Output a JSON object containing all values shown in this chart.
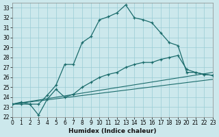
{
  "bg_color": "#cce8ec",
  "grid_color": "#99ccd4",
  "line_color": "#1a6b6b",
  "xlabel": "Humidex (Indice chaleur)",
  "xlim": [
    0,
    23
  ],
  "ylim": [
    22,
    33.5
  ],
  "yticks": [
    22,
    23,
    24,
    25,
    26,
    27,
    28,
    29,
    30,
    31,
    32,
    33
  ],
  "xticks": [
    0,
    1,
    2,
    3,
    4,
    5,
    6,
    7,
    8,
    9,
    10,
    11,
    12,
    13,
    14,
    15,
    16,
    17,
    18,
    19,
    20,
    21,
    22,
    23
  ],
  "curve1_x": [
    0,
    1,
    2,
    3,
    4,
    5,
    6,
    7,
    8,
    9,
    10,
    11,
    12,
    13,
    14,
    15,
    16,
    17,
    18,
    19,
    20,
    21,
    22,
    23
  ],
  "curve1_y": [
    23.3,
    23.5,
    23.3,
    23.3,
    24.2,
    25.2,
    27.3,
    27.3,
    29.5,
    30.1,
    31.8,
    32.1,
    32.5,
    33.3,
    32.0,
    31.8,
    31.5,
    30.5,
    29.5,
    29.2,
    26.5,
    26.5,
    26.3,
    26.2
  ],
  "curve2_x": [
    0,
    1,
    2,
    3,
    4,
    5,
    6,
    7,
    8,
    9,
    10,
    11,
    12,
    13,
    14,
    15,
    16,
    17,
    18,
    19,
    20,
    21,
    22,
    23
  ],
  "curve2_y": [
    23.3,
    23.3,
    23.3,
    22.2,
    23.8,
    24.8,
    24.0,
    24.3,
    25.0,
    25.5,
    26.0,
    26.3,
    26.5,
    27.0,
    27.3,
    27.5,
    27.5,
    27.8,
    28.0,
    28.2,
    26.8,
    26.5,
    26.3,
    26.2
  ],
  "line1_x": [
    0,
    23
  ],
  "line1_y": [
    23.3,
    25.8
  ],
  "line2_x": [
    0,
    23
  ],
  "line2_y": [
    23.3,
    26.5
  ]
}
